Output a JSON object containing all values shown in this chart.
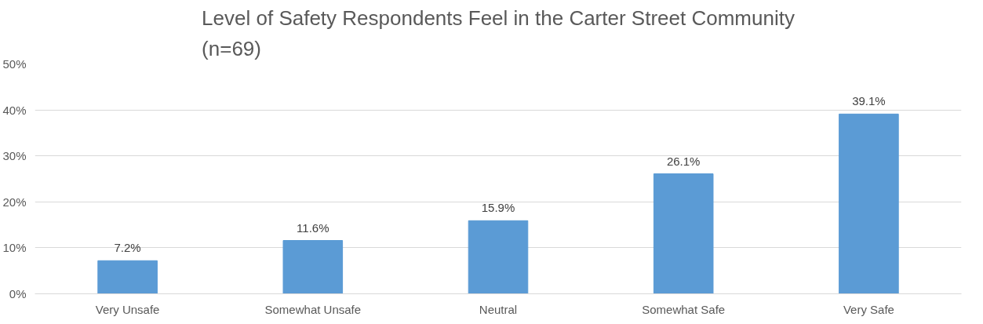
{
  "chart_data": {
    "type": "bar",
    "title": "Level of Safety Respondents Feel in the Carter Street Community\n(n=69)",
    "categories": [
      "Very Unsafe",
      "Somewhat Unsafe",
      "Neutral",
      "Somewhat Safe",
      "Very Safe"
    ],
    "values": [
      7.2,
      11.6,
      15.9,
      26.1,
      39.1
    ],
    "value_labels": [
      "7.2%",
      "11.6%",
      "15.9%",
      "26.1%",
      "39.1%"
    ],
    "color": "#5b9bd5",
    "ylim": [
      0,
      50
    ],
    "yticks": [
      {
        "value": 0,
        "label": "0%"
      },
      {
        "value": 10,
        "label": "10%"
      },
      {
        "value": 20,
        "label": "20%"
      },
      {
        "value": 30,
        "label": "30%"
      },
      {
        "value": 40,
        "label": "40%"
      },
      {
        "value": 50,
        "label": "50%"
      }
    ],
    "grid": "y"
  }
}
